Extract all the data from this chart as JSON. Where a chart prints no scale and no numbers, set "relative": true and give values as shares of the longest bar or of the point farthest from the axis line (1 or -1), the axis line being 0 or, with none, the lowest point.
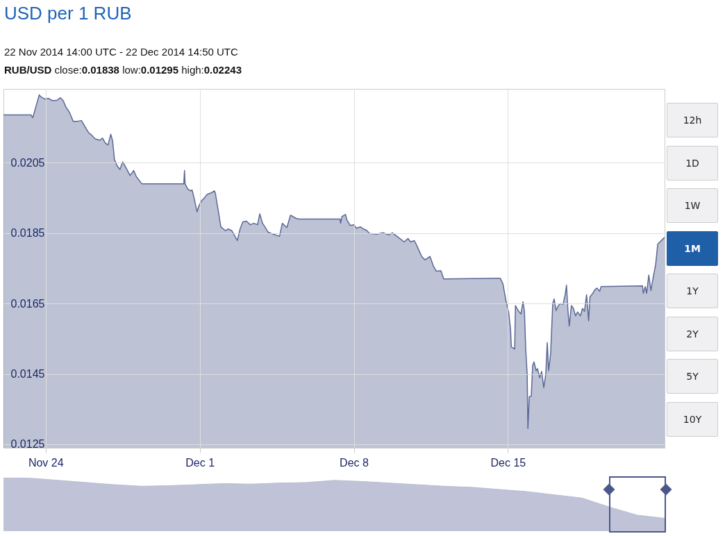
{
  "chart_data": [
    {
      "type": "area",
      "title": "USD per 1 RUB",
      "subtitle": "22 Nov 2014 14:00 UTC - 22 Dec 2014 14:50 UTC",
      "annotations": [
        "RUB/USD close:0.01838 low:0.01295 high:0.02243",
        "12h",
        "1D",
        "1W",
        "1M",
        "1Y",
        "2Y",
        "5Y",
        "10Y"
      ],
      "x": [
        "2014-11-22T14:00",
        "2014-11-23T20:00",
        "2014-11-23T22:00",
        "2014-11-24T05:00",
        "2014-11-24T07:00",
        "2014-11-24T11:00",
        "2014-11-24T15:00",
        "2014-11-24T19:00",
        "2014-11-25T00:00",
        "2014-11-25T04:00",
        "2014-11-25T07:00",
        "2014-11-25T10:00",
        "2014-11-25T14:00",
        "2014-11-25T18:00",
        "2014-11-25T23:00",
        "2014-11-26T03:00",
        "2014-11-26T08:00",
        "2014-11-26T11:00",
        "2014-11-26T14:00",
        "2014-11-26T18:00",
        "2014-11-26T23:00",
        "2014-11-27T02:00",
        "2014-11-27T05:00",
        "2014-11-27T08:00",
        "2014-11-27T11:00",
        "2014-11-27T13:00",
        "2014-11-27T15:00",
        "2014-11-27T18:00",
        "2014-11-27T21:00",
        "2014-11-28T00:00",
        "2014-11-28T04:00",
        "2014-11-28T08:00",
        "2014-11-28T12:00",
        "2014-11-28T15:00",
        "2014-11-28T21:00",
        "2014-11-30T18:36",
        "2014-11-30T19:24",
        "2014-11-30T20:00",
        "2014-11-30T23:00",
        "2014-12-01T02:00",
        "2014-12-01T03:36",
        "2014-12-01T06:00",
        "2014-12-01T09:00",
        "2014-12-01T11:00",
        "2014-12-01T14:00",
        "2014-12-01T17:00",
        "2014-12-01T20:00",
        "2014-12-02T00:00",
        "2014-12-02T04:00",
        "2014-12-02T05:00",
        "2014-12-02T08:00",
        "2014-12-02T11:00",
        "2014-12-02T16:00",
        "2014-12-02T19:00",
        "2014-12-02T23:00",
        "2014-12-03T05:00",
        "2014-12-03T08:00",
        "2014-12-03T11:00",
        "2014-12-03T15:00",
        "2014-12-03T19:00",
        "2014-12-03T23:00",
        "2014-12-04T03:00",
        "2014-12-04T05:30",
        "2014-12-04T08:30",
        "2014-12-04T11:30",
        "2014-12-04T14:30",
        "2014-12-04T20:00",
        "2014-12-05T03:00",
        "2014-12-05T06:00",
        "2014-12-05T11:00",
        "2014-12-05T15:00",
        "2014-12-05T21:00",
        "2014-12-06T00:00",
        "2014-12-07T21:00",
        "2014-12-07T21:36",
        "2014-12-07T23:00",
        "2014-12-08T03:00",
        "2014-12-08T04:24",
        "2014-12-08T08:00",
        "2014-12-08T12:00",
        "2014-12-08T15:00",
        "2014-12-08T19:00",
        "2014-12-08T22:30",
        "2014-12-09T02:00",
        "2014-12-09T05:00",
        "2014-12-09T13:00",
        "2014-12-09T20:00",
        "2014-12-10T02:00",
        "2014-12-10T06:00",
        "2014-12-10T11:00",
        "2014-12-10T15:00",
        "2014-12-10T19:00",
        "2014-12-10T23:00",
        "2014-12-11T02:00",
        "2014-12-11T06:00",
        "2014-12-11T09:00",
        "2014-12-11T14:00",
        "2014-12-11T17:30",
        "2014-12-11T23:00",
        "2014-12-12T03:00",
        "2014-12-12T06:00",
        "2014-12-12T11:00",
        "2014-12-12T14:00",
        "2014-12-15T00:36",
        "2014-12-15T03:36",
        "2014-12-15T06:36",
        "2014-12-15T09:42",
        "2014-12-15T12:42",
        "2014-12-15T14:54",
        "2014-12-15T15:42",
        "2014-12-15T19:24",
        "2014-12-15T20:12",
        "2014-12-15T23:12",
        "2014-12-16T02:12",
        "2014-12-16T04:30",
        "2014-12-16T06:00",
        "2014-12-16T07:30",
        "2014-12-16T09:00",
        "2014-12-16T09:48",
        "2014-12-16T11:18",
        "2014-12-16T13:30",
        "2014-12-16T15:00",
        "2014-12-16T16:30",
        "2014-12-16T18:48",
        "2014-12-16T20:18",
        "2014-12-16T22:36",
        "2014-12-17T00:48",
        "2014-12-17T03:06",
        "2014-12-17T05:18",
        "2014-12-17T06:54",
        "2014-12-17T08:24",
        "2014-12-17T10:36",
        "2014-12-17T12:54",
        "2014-12-17T14:24",
        "2014-12-17T16:36",
        "2014-12-17T18:54",
        "2014-12-17T21:12",
        "2014-12-18T00:12",
        "2014-12-18T02:24",
        "2014-12-18T03:54",
        "2014-12-18T05:24",
        "2014-12-18T06:54",
        "2014-12-18T09:12",
        "2014-12-18T11:30",
        "2014-12-18T13:42",
        "2014-12-18T16:00",
        "2014-12-18T19:00",
        "2014-12-18T21:18",
        "2014-12-18T23:30",
        "2014-12-19T01:48",
        "2014-12-19T04:00",
        "2014-12-19T05:30",
        "2014-12-19T08:36",
        "2014-12-19T10:48",
        "2014-12-19T13:06",
        "2014-12-19T16:06",
        "2014-12-19T17:36",
        "2014-12-21T14:48",
        "2014-12-21T15:36",
        "2014-12-21T17:48",
        "2014-12-21T19:18",
        "2014-12-21T21:36",
        "2014-12-21T23:54",
        "2014-12-22T02:54",
        "2014-12-22T05:06",
        "2014-12-22T07:24",
        "2014-12-22T14:50"
      ],
      "series": [
        {
          "color": "#5a6896",
          "values": [
            0.02186,
            0.02186,
            0.02178,
            0.02243,
            0.02237,
            0.02231,
            0.02233,
            0.02227,
            0.02227,
            0.02235,
            0.02227,
            0.02209,
            0.02193,
            0.02168,
            0.02168,
            0.0217,
            0.02148,
            0.02135,
            0.02129,
            0.02118,
            0.02114,
            0.0212,
            0.02106,
            0.02101,
            0.02131,
            0.02112,
            0.02059,
            0.02041,
            0.02031,
            0.02053,
            0.02034,
            0.02014,
            0.02028,
            0.0201,
            0.0199,
            0.0199,
            0.02028,
            0.0199,
            0.01975,
            0.0197,
            0.01973,
            0.01948,
            0.01911,
            0.01927,
            0.01942,
            0.0195,
            0.0196,
            0.01964,
            0.0197,
            0.01964,
            0.01917,
            0.01868,
            0.01857,
            0.01862,
            0.01857,
            0.01829,
            0.01862,
            0.01882,
            0.01884,
            0.01874,
            0.01878,
            0.01874,
            0.01905,
            0.01878,
            0.01866,
            0.01853,
            0.01847,
            0.01841,
            0.01878,
            0.01866,
            0.01901,
            0.01892,
            0.0189,
            0.0189,
            0.01878,
            0.01897,
            0.01903,
            0.01888,
            0.01872,
            0.01874,
            0.01864,
            0.01868,
            0.01862,
            0.01858,
            0.01849,
            0.01847,
            0.01851,
            0.01845,
            0.01851,
            0.01841,
            0.01833,
            0.01825,
            0.01835,
            0.01825,
            0.01829,
            0.01813,
            0.01784,
            0.01774,
            0.01784,
            0.01755,
            0.01742,
            0.01743,
            0.0172,
            0.01722,
            0.01722,
            0.01706,
            0.0166,
            0.01628,
            0.01576,
            0.01527,
            0.01521,
            0.01644,
            0.0163,
            0.0162,
            0.01655,
            0.01628,
            0.01517,
            0.01449,
            0.01295,
            0.01385,
            0.01387,
            0.01474,
            0.01484,
            0.01459,
            0.01465,
            0.01439,
            0.01457,
            0.01411,
            0.01449,
            0.01539,
            0.01459,
            0.01508,
            0.0165,
            0.01663,
            0.0163,
            0.01644,
            0.0165,
            0.01648,
            0.01675,
            0.01702,
            0.01632,
            0.01586,
            0.01644,
            0.01636,
            0.01615,
            0.01626,
            0.01615,
            0.01636,
            0.01628,
            0.01675,
            0.01601,
            0.01669,
            0.01679,
            0.01689,
            0.01694,
            0.01685,
            0.01698,
            0.017,
            0.01679,
            0.01698,
            0.01679,
            0.01731,
            0.01687,
            0.01731,
            0.01761,
            0.01819,
            0.01838
          ]
        }
      ],
      "xlim": [
        "2014-11-22T14:00",
        "2014-12-22T14:50"
      ],
      "ylim": [
        0.0124,
        0.0226
      ],
      "xticks": [
        {
          "value": "2014-11-24T12:00",
          "label": "Nov 24"
        },
        {
          "value": "2014-12-01T12:00",
          "label": "Dec 1"
        },
        {
          "value": "2014-12-08T12:00",
          "label": "Dec 8"
        },
        {
          "value": "2014-12-15T12:00",
          "label": "Dec 15"
        }
      ],
      "yticks": [
        0.0125,
        0.0145,
        0.0165,
        0.0185,
        0.0205
      ],
      "grid": true
    },
    {
      "type": "area",
      "relative": true,
      "categories": [
        null,
        null,
        null,
        null,
        null,
        null,
        null,
        null,
        null,
        null,
        null,
        null,
        null,
        null,
        null,
        null,
        null,
        null,
        null,
        null,
        null,
        null,
        null,
        null,
        null
      ],
      "series": [
        {
          "color": "#b9bdd3",
          "values": [
            1.0,
            0.99,
            0.95,
            0.91,
            0.87,
            0.84,
            0.85,
            0.87,
            0.89,
            0.88,
            0.9,
            0.91,
            0.95,
            0.93,
            0.9,
            0.87,
            0.84,
            0.82,
            0.78,
            0.74,
            0.68,
            0.62,
            0.45,
            0.3,
            0.24
          ]
        }
      ]
    }
  ]
}
